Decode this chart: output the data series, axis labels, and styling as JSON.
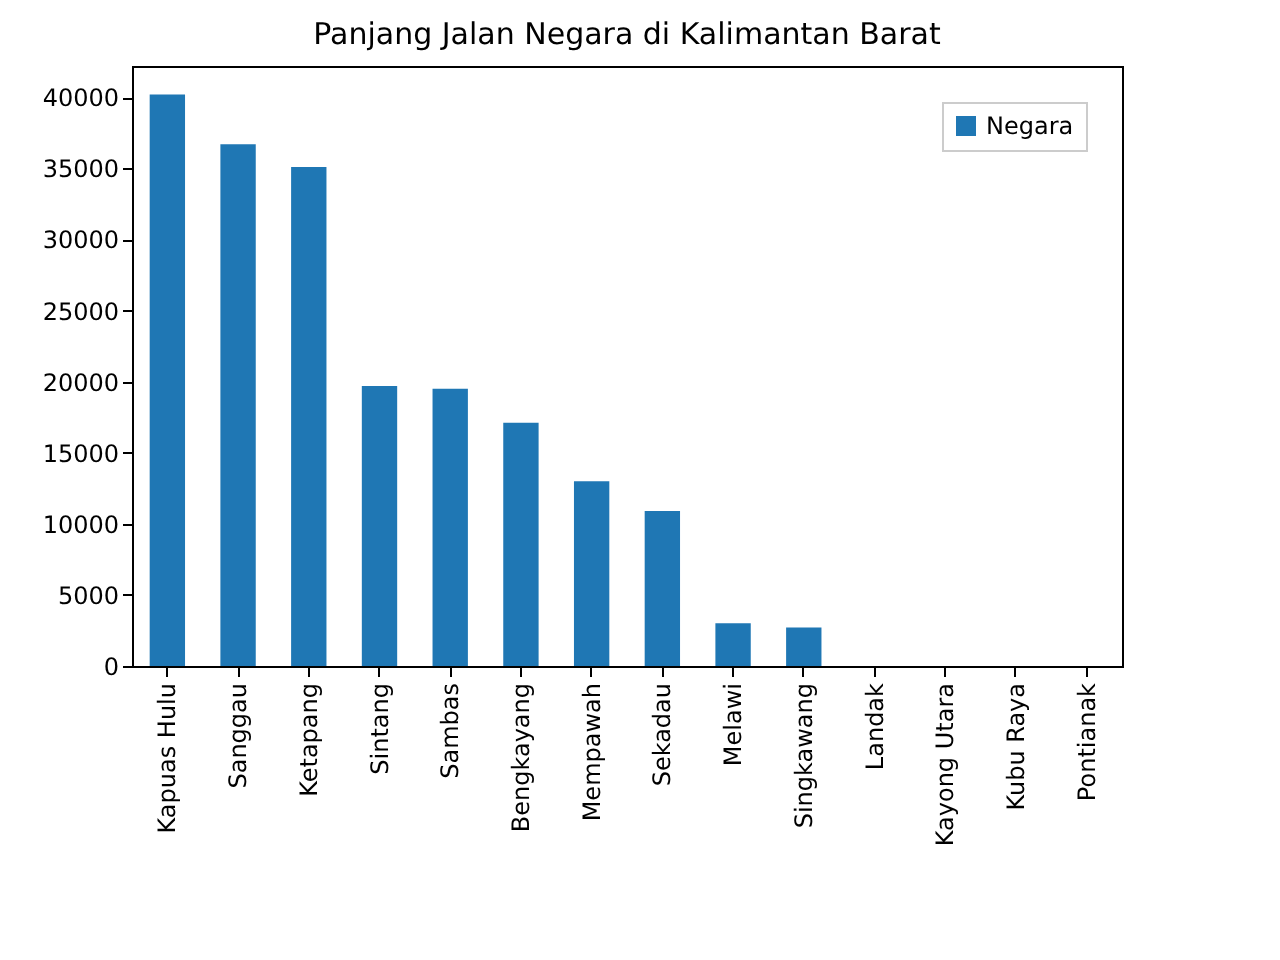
{
  "chart_data": {
    "type": "bar",
    "title": "Panjang Jalan Negara di Kalimantan Barat",
    "categories": [
      "Kapuas Hulu",
      "Sanggau",
      "Ketapang",
      "Sintang",
      "Sambas",
      "Bengkayang",
      "Mempawah",
      "Sekadau",
      "Melawi",
      "Singkawang",
      "Landak",
      "Kayong Utara",
      "Kubu Raya",
      "Pontianak"
    ],
    "series": [
      {
        "name": "Negara",
        "color": "#1f77b4",
        "values": [
          40200,
          36700,
          35100,
          19700,
          19500,
          17100,
          13000,
          10900,
          3000,
          2700,
          0,
          0,
          0,
          0
        ]
      }
    ],
    "ylim": [
      0,
      42200
    ],
    "yticks": [
      0,
      5000,
      10000,
      15000,
      20000,
      25000,
      30000,
      35000,
      40000
    ],
    "grid": false,
    "legend": "top right"
  }
}
